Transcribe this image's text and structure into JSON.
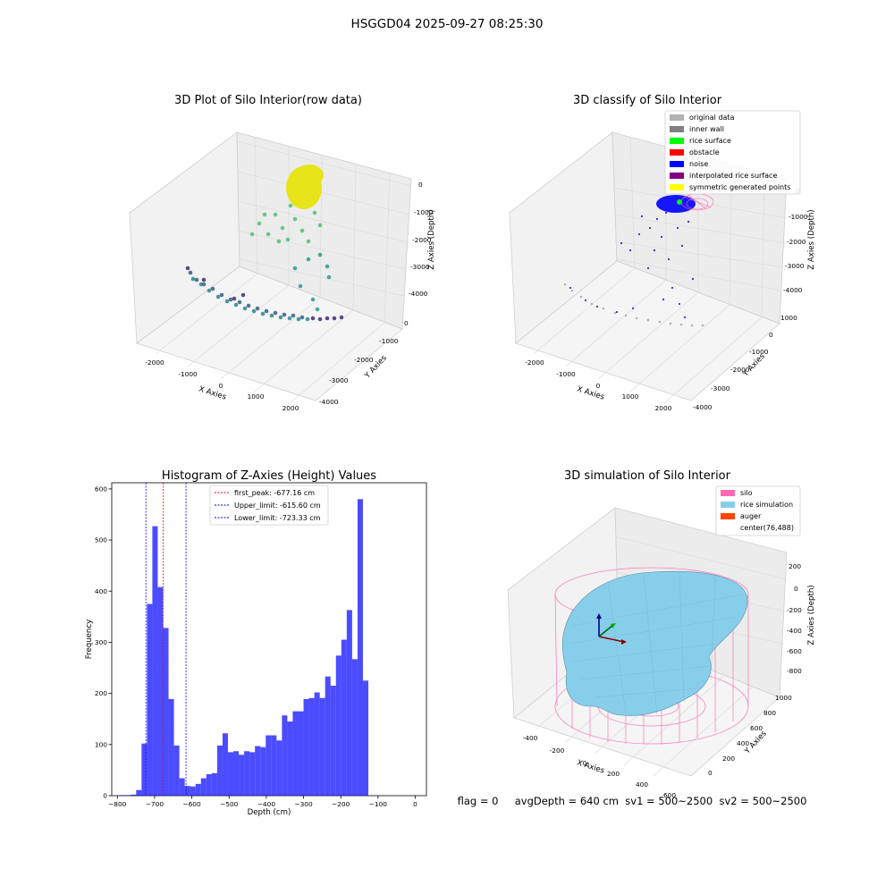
{
  "figure": {
    "title": "HSGGD04 2025-09-27 08:25:30",
    "footer": "flag = 0     avgDepth = 640 cm  sv1 = 500~2500  sv2 = 500~2500"
  },
  "panels": {
    "raw": {
      "title": "3D Plot of Silo Interior(row data)",
      "xlabel": "X Axies",
      "ylabel": "Y Axies",
      "zlabel": "Z Axies (Depth)",
      "xticks": [
        "-2000",
        "-1000",
        "0",
        "1000",
        "2000"
      ],
      "yticks": [
        "0",
        "-1000",
        "-2000",
        "-3000",
        "-4000"
      ],
      "zticks": [
        "0",
        "-1000",
        "-2000",
        "-3000",
        "-4000"
      ]
    },
    "classify": {
      "title": "3D classify of Silo Interior",
      "xlabel": "X Axies",
      "ylabel": "Y Axies",
      "zlabel": "Z Axies (Depth)",
      "xticks": [
        "-2000",
        "-1000",
        "0",
        "1000",
        "2000"
      ],
      "yticks": [
        "1000",
        "0",
        "-1000",
        "-2000",
        "-3000",
        "-4000"
      ],
      "zticks": [
        "0",
        "-1000",
        "-2000",
        "-3000",
        "-4000"
      ],
      "legend": [
        {
          "label": "original data",
          "color": "#b3b3b3"
        },
        {
          "label": "inner wall",
          "color": "#808080"
        },
        {
          "label": "rice surface",
          "color": "#00ff00"
        },
        {
          "label": "obstacle",
          "color": "#ff0000"
        },
        {
          "label": "noise",
          "color": "#0000ff"
        },
        {
          "label": "interpolated rice surface",
          "color": "#800080"
        },
        {
          "label": "symmetric generated points",
          "color": "#ffff00"
        }
      ]
    },
    "sim": {
      "title": "3D simulation of Silo Interior",
      "xlabel": "X Axies",
      "ylabel": "Y Axies",
      "zlabel": "Z Axies (Depth)",
      "xticks": [
        "-400",
        "-200",
        "0",
        "200",
        "400",
        "600"
      ],
      "yticks": [
        "0",
        "200",
        "400",
        "600",
        "800",
        "1000"
      ],
      "zticks": [
        "200",
        "0",
        "-200",
        "-400",
        "-600",
        "-800"
      ],
      "legend": [
        {
          "label": "silo",
          "color": "#ff69b4"
        },
        {
          "label": "rice simulation",
          "color": "#87ceeb"
        },
        {
          "label": "auger",
          "color": "#ff4500"
        },
        {
          "label": "center(76,488)",
          "color": ""
        }
      ]
    }
  },
  "chart_data": [
    {
      "type": "bar",
      "title": "Histogram of Z-Axies (Height) Values",
      "xlabel": "Depth (cm)",
      "ylabel": "Frequency",
      "xlim": [
        -815,
        30
      ],
      "ylim": [
        0,
        612
      ],
      "xticks": [
        -800,
        -700,
        -600,
        -500,
        -400,
        -300,
        -200,
        -100,
        0
      ],
      "yticks": [
        0,
        100,
        200,
        300,
        400,
        500,
        600
      ],
      "bar_color": "#0000ff",
      "bar_opacity": 0.7,
      "bin_width": 14.5,
      "bin_start": -793,
      "counts": [
        1,
        1,
        2,
        11,
        102,
        375,
        527,
        408,
        328,
        189,
        98,
        34,
        19,
        18,
        23,
        34,
        42,
        44,
        98,
        122,
        85,
        87,
        80,
        87,
        85,
        97,
        95,
        118,
        118,
        108,
        157,
        145,
        165,
        165,
        189,
        191,
        202,
        191,
        233,
        215,
        274,
        305,
        363,
        267,
        580,
        225
      ],
      "lines": [
        {
          "label": "first_peak: -677.16 cm",
          "x": -677.16,
          "color": "#ff0000"
        },
        {
          "label": "Upper_limit: -615.60 cm",
          "x": -615.6,
          "color": "#0000ff"
        },
        {
          "label": "Lower_limit: -723.33 cm",
          "x": -723.33,
          "color": "#0000ff"
        }
      ],
      "legend_position": "top-center"
    }
  ]
}
